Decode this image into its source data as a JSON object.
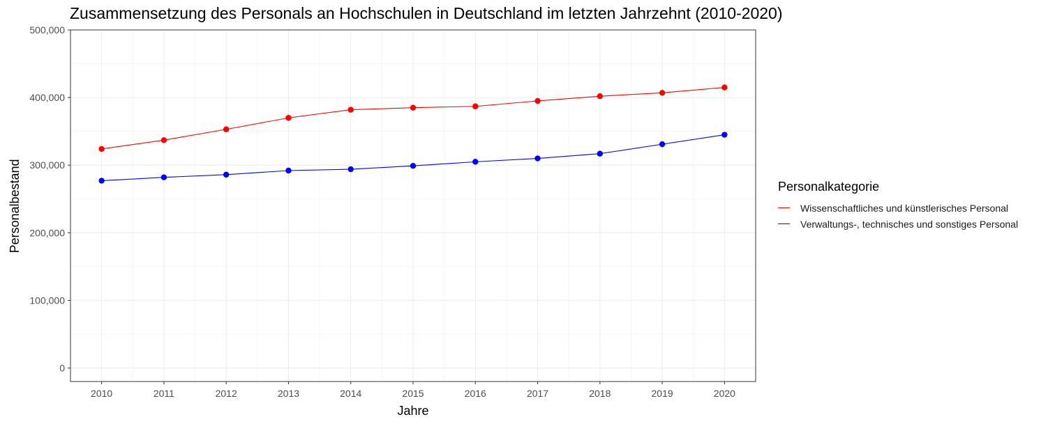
{
  "chart_data": {
    "type": "line",
    "title": "Zusammensetzung des Personals an Hochschulen in Deutschland im letzten Jahrzehnt (2010-2020)",
    "xlabel": "Jahre",
    "ylabel": "Personalbestand",
    "x": [
      2010,
      2011,
      2012,
      2013,
      2014,
      2015,
      2016,
      2017,
      2018,
      2019,
      2020
    ],
    "xlim": [
      2009.5,
      2020.5
    ],
    "ylim": [
      -20000,
      500000
    ],
    "yticks": [
      0,
      100000,
      200000,
      300000,
      400000,
      500000
    ],
    "ytick_labels": [
      "0",
      "100,000",
      "200,000",
      "300,000",
      "400,000",
      "500,000"
    ],
    "grid": true,
    "legend_title": "Personalkategorie",
    "legend_position": "right",
    "series": [
      {
        "name": "Wissenschaftliches und künstlerisches Personal",
        "color": "#ff0000",
        "values": [
          324000,
          337000,
          353000,
          370000,
          382000,
          385000,
          387000,
          395000,
          402000,
          407000,
          415000
        ]
      },
      {
        "name": "Verwaltungs-, technisches und sonstiges Personal",
        "color": "#0000ff",
        "values": [
          277000,
          282000,
          286000,
          292000,
          294000,
          299000,
          305000,
          310000,
          317000,
          331000,
          345000
        ]
      }
    ]
  }
}
